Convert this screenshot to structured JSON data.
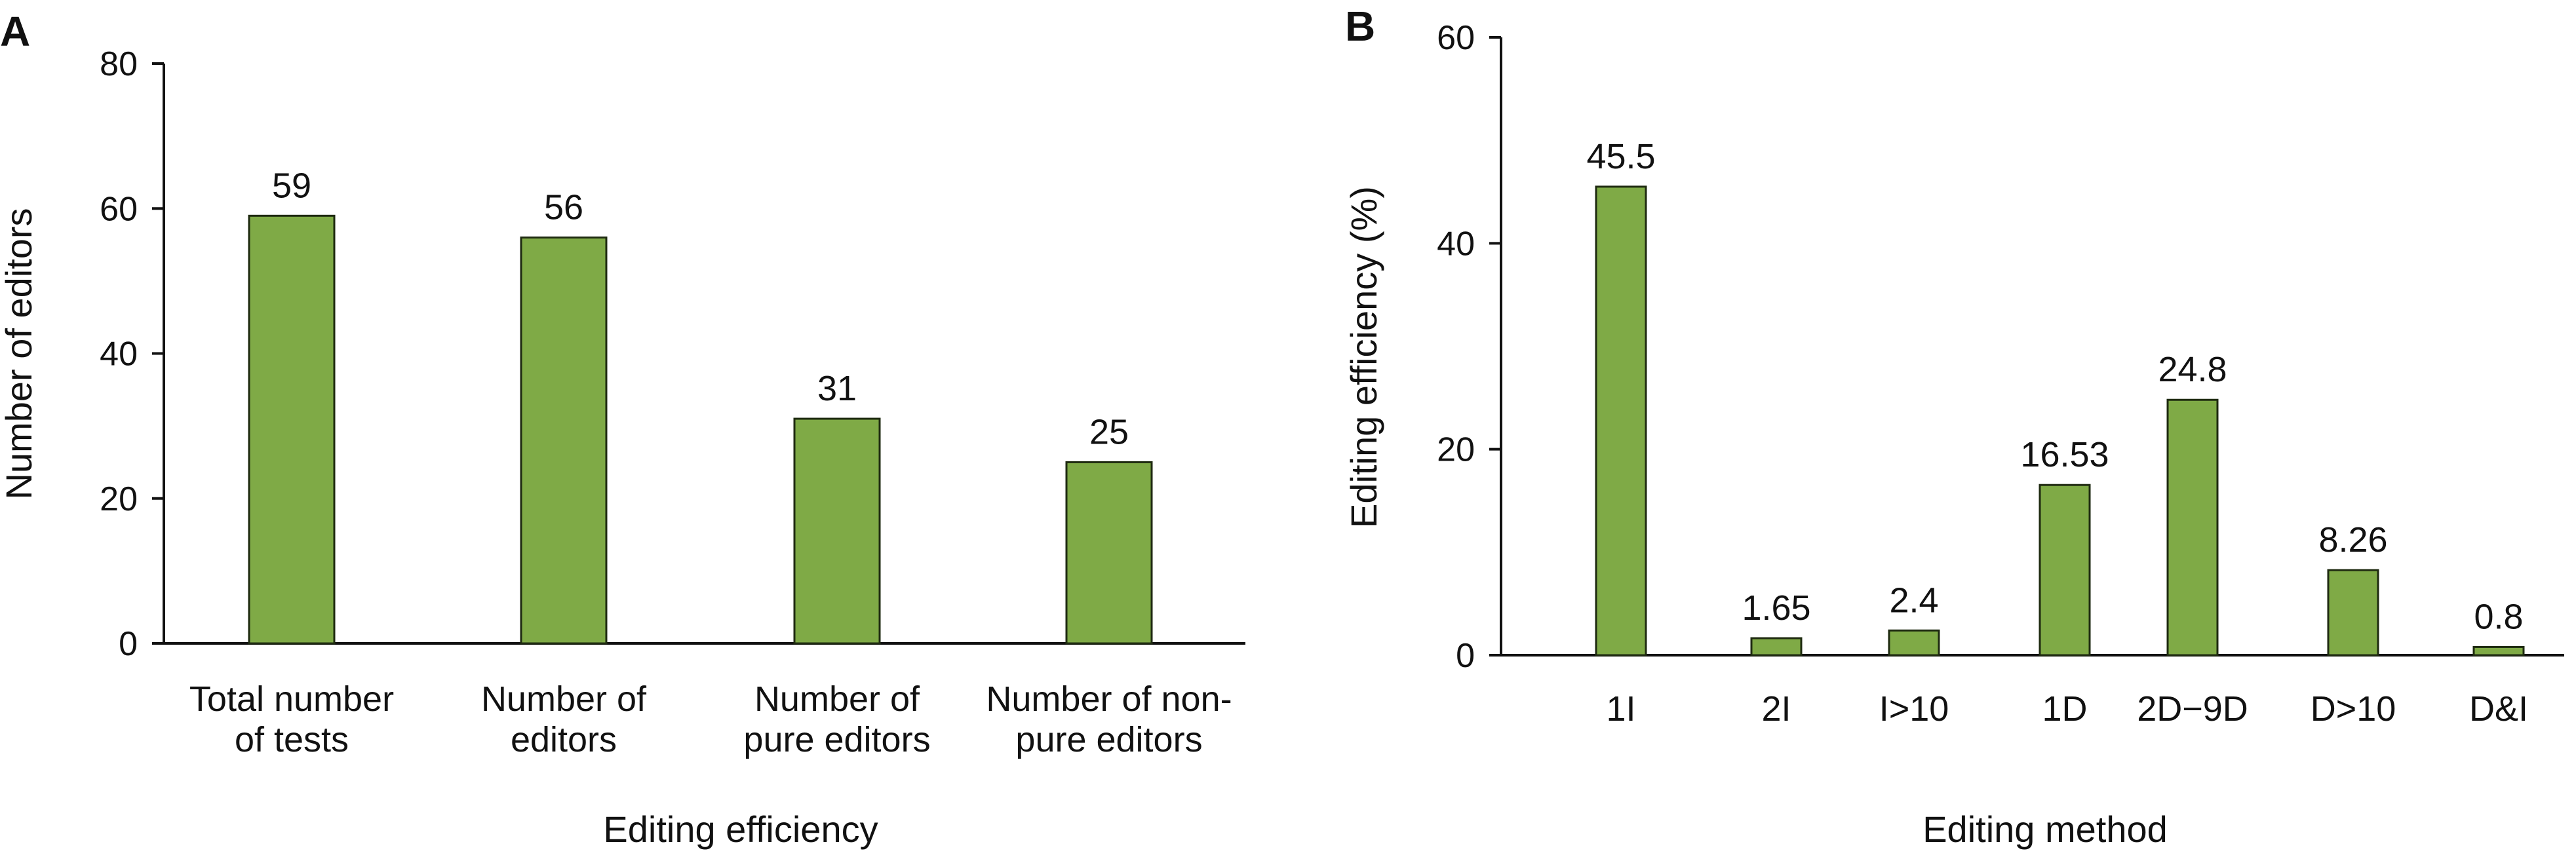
{
  "colors": {
    "bar_fill": "#7faa46",
    "bar_stroke": "#1e2a10",
    "axis": "#111111"
  },
  "chart_data": [
    {
      "panel": "A",
      "type": "bar",
      "categories": [
        [
          "Total number",
          "of tests"
        ],
        [
          "Number of",
          "editors"
        ],
        [
          "Number of",
          "pure editors"
        ],
        [
          "Number of non-",
          "pure editors"
        ]
      ],
      "values": [
        59,
        56,
        31,
        25
      ],
      "data_labels": [
        "59",
        "56",
        "31",
        "25"
      ],
      "xlabel": "Editing efficiency",
      "ylabel": "Number of editors",
      "ylim": [
        0,
        80
      ],
      "yticks": [
        0,
        20,
        40,
        60,
        80
      ],
      "grid": false,
      "legend": "none"
    },
    {
      "panel": "B",
      "type": "bar",
      "categories": [
        "1I",
        "2I",
        "I>10",
        "1D",
        "2D−9D",
        "D>10",
        "D&I"
      ],
      "values": [
        45.5,
        1.65,
        2.4,
        16.53,
        24.8,
        8.26,
        0.8
      ],
      "data_labels": [
        "45.5",
        "1.65",
        "2.4",
        "16.53",
        "24.8",
        "8.26",
        "0.8"
      ],
      "xlabel": "Editing method",
      "ylabel": "Editing efficiency (%)",
      "ylim": [
        0,
        60
      ],
      "yticks": [
        0,
        20,
        40,
        60
      ],
      "grid": false,
      "legend": "none"
    }
  ]
}
